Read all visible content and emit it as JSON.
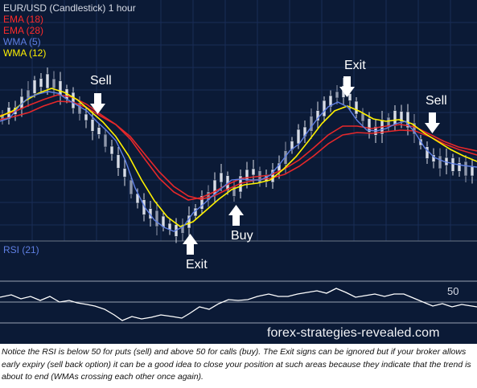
{
  "chart": {
    "title": "EUR/USD (Candlestick)  1 hour",
    "legend": [
      {
        "label": "EMA (18)",
        "color": "#ff2a2a"
      },
      {
        "label": "EMA (28)",
        "color": "#ff2a2a"
      },
      {
        "label": "WMA (5)",
        "color": "#5f7fe3"
      },
      {
        "label": "WMA (12)",
        "color": "#fff200"
      }
    ],
    "annotations": {
      "sell_1": "Sell",
      "exit_1": "Exit",
      "buy": "Buy",
      "exit_2": "Exit",
      "sell_2": "Sell"
    },
    "rsi": {
      "label": "RSI (21)",
      "level": "50"
    },
    "watermark": "forex-strategies-revealed.com"
  },
  "caption": "Notice the RSI is below 50 for puts (sell) and above 50 for calls (buy). The Exit signs can be ignored but if your broker allows early expiry (sell back option) it can be a good idea to close your position at such areas because they indicate that the trend is about to end (WMAs crossing each other once again).",
  "colors": {
    "background": "#0b1a36",
    "grid": "#1a2d57",
    "candle": "#d8dce6",
    "candle_dark": "#8f97aa",
    "ema": "#e6282a",
    "wma_fast": "#5f7fe3",
    "wma_slow": "#fff200",
    "rsi": "#ffffff"
  }
}
